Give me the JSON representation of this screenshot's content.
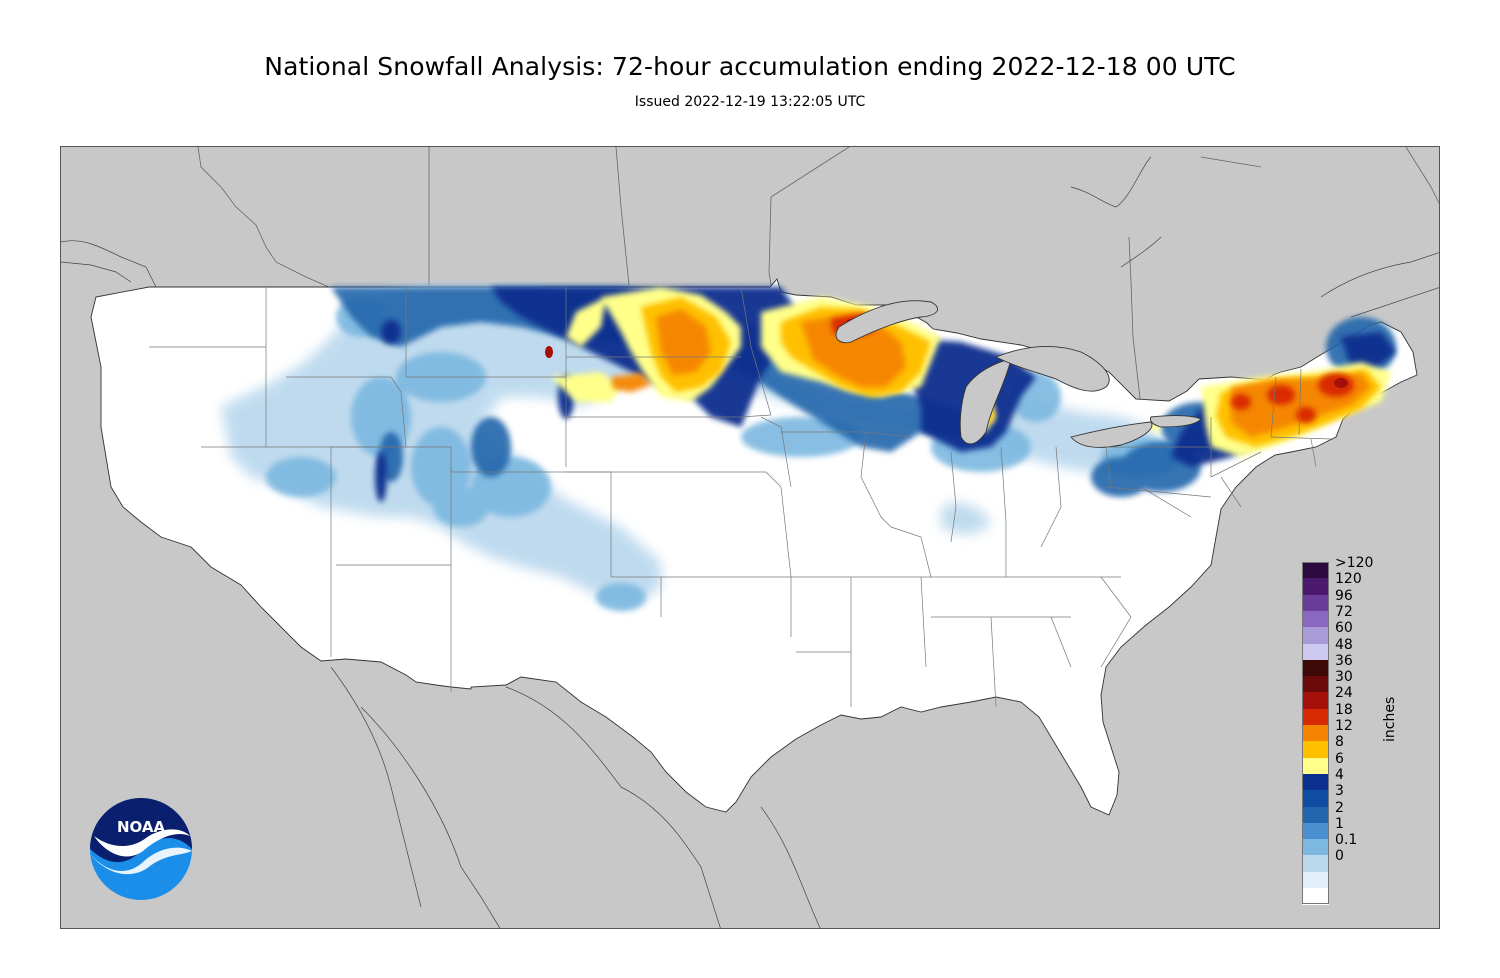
{
  "header": {
    "title": "National Snowfall Analysis: 72-hour accumulation ending 2022-12-18 00 UTC",
    "subtitle": "Issued 2022-12-19 13:22:05 UTC"
  },
  "legend": {
    "units": "inches",
    "entries": [
      {
        "label": ">120",
        "color": "#2c0a3e"
      },
      {
        "label": "120",
        "color": "#4b1a6e"
      },
      {
        "label": "96",
        "color": "#6a3d9a"
      },
      {
        "label": "72",
        "color": "#8a68c2"
      },
      {
        "label": "60",
        "color": "#a99ad8"
      },
      {
        "label": "48",
        "color": "#cdc9f0"
      },
      {
        "label": "36",
        "color": "#3d0a08"
      },
      {
        "label": "30",
        "color": "#6b0a0a"
      },
      {
        "label": "24",
        "color": "#a50f0a"
      },
      {
        "label": "18",
        "color": "#d92a06"
      },
      {
        "label": "12",
        "color": "#f58500"
      },
      {
        "label": "8",
        "color": "#ffc000"
      },
      {
        "label": "6",
        "color": "#ffff8a"
      },
      {
        "label": "4",
        "color": "#0b2f8f"
      },
      {
        "label": "3",
        "color": "#0f4da3"
      },
      {
        "label": "2",
        "color": "#2166ac"
      },
      {
        "label": "1",
        "color": "#4a90d0"
      },
      {
        "label": "0.1",
        "color": "#7cb8e0"
      },
      {
        "label": "0",
        "color": "#bcd9ee"
      }
    ],
    "bottom_colors": [
      "#e2eef8",
      "#ffffff"
    ]
  },
  "logo": {
    "text": "NOAA"
  },
  "colors": {
    "land": "#ffffff",
    "outside": "#c8c8c8",
    "lake": "#c8c8c8",
    "border": "#555555"
  }
}
